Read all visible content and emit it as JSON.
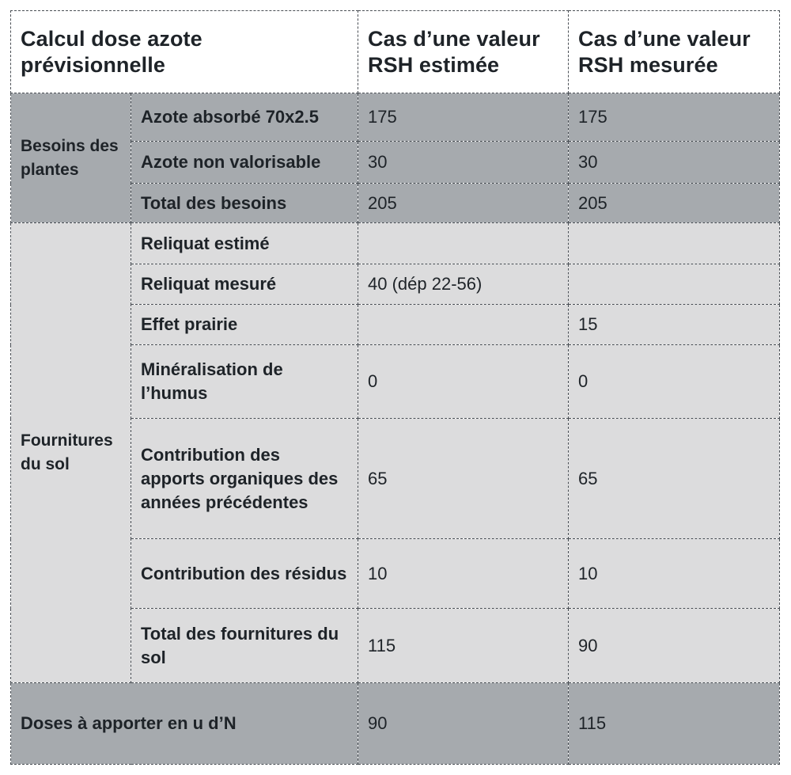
{
  "header": {
    "col1": "Calcul dose azote prévisionnelle",
    "col2": "Cas d’une valeur RSH estimée",
    "col3": "Cas d’une valeur RSH mesurée"
  },
  "besoins": {
    "group": "Besoins des plantes",
    "rows": [
      {
        "label": "Azote absorbé  70x2.5",
        "estimee": "175",
        "mesuree": "175"
      },
      {
        "label": "Azote non valorisable",
        "estimee": "30",
        "mesuree": "30"
      },
      {
        "label": "Total des besoins",
        "estimee": "205",
        "mesuree": "205"
      }
    ]
  },
  "fournitures": {
    "group": "Fournitures du sol",
    "rows": [
      {
        "label": "Reliquat estimé",
        "estimee": "",
        "mesuree": ""
      },
      {
        "label": "Reliquat mesuré",
        "estimee": "40 (dép 22-56)",
        "mesuree": ""
      },
      {
        "label": "Effet prairie",
        "estimee": "",
        "mesuree": "15"
      },
      {
        "label": "Minéralisation de l’humus",
        "estimee": "0",
        "mesuree": "0"
      },
      {
        "label": "Contribution des apports organiques des années précédentes",
        "estimee": "65",
        "mesuree": "65"
      },
      {
        "label": "Contribution des résidus",
        "estimee": "10",
        "mesuree": "10"
      },
      {
        "label": "Total des fournitures du sol",
        "estimee": "115",
        "mesuree": "90"
      }
    ]
  },
  "doses": {
    "label": "Doses à apporter en u d’N",
    "estimee": "90",
    "mesuree": "115"
  },
  "colors": {
    "dark": "#a6aaae",
    "light": "#dcdcdd",
    "header": "#ffffff",
    "border": "#4a4f55"
  }
}
